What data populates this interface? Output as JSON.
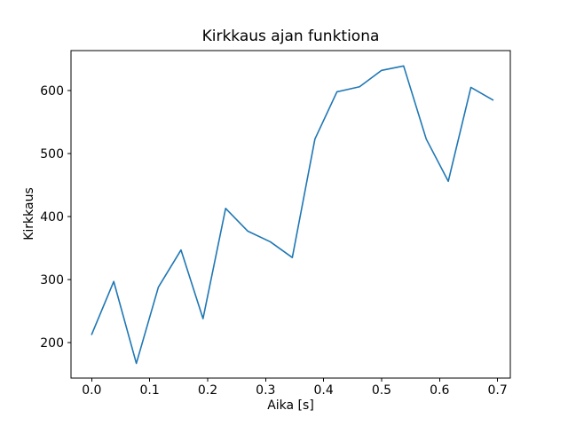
{
  "chart_data": {
    "type": "line",
    "title": "Kirkkaus ajan funktiona",
    "xlabel": "Aika [s]",
    "ylabel": "Kirkkaus",
    "x": [
      0.0,
      0.038,
      0.077,
      0.115,
      0.154,
      0.192,
      0.231,
      0.269,
      0.308,
      0.346,
      0.385,
      0.423,
      0.462,
      0.5,
      0.538,
      0.577,
      0.615,
      0.654,
      0.692
    ],
    "y": [
      213,
      297,
      167,
      288,
      347,
      238,
      413,
      377,
      360,
      335,
      523,
      598,
      606,
      632,
      639,
      523,
      456,
      605,
      585
    ],
    "xlim": [
      -0.0357,
      0.722
    ],
    "ylim": [
      143.7,
      663.4
    ],
    "xticks": [
      0.0,
      0.1,
      0.2,
      0.3,
      0.4,
      0.5,
      0.6,
      0.7
    ],
    "xtick_labels": [
      "0.0",
      "0.1",
      "0.2",
      "0.3",
      "0.4",
      "0.5",
      "0.6",
      "0.7"
    ],
    "yticks": [
      200,
      300,
      400,
      500,
      600
    ],
    "ytick_labels": [
      "200",
      "300",
      "400",
      "500",
      "600"
    ],
    "line_color": "#1f77b4",
    "axis_color": "#000000",
    "background_color": "#ffffff",
    "grid": false,
    "legend": null
  }
}
